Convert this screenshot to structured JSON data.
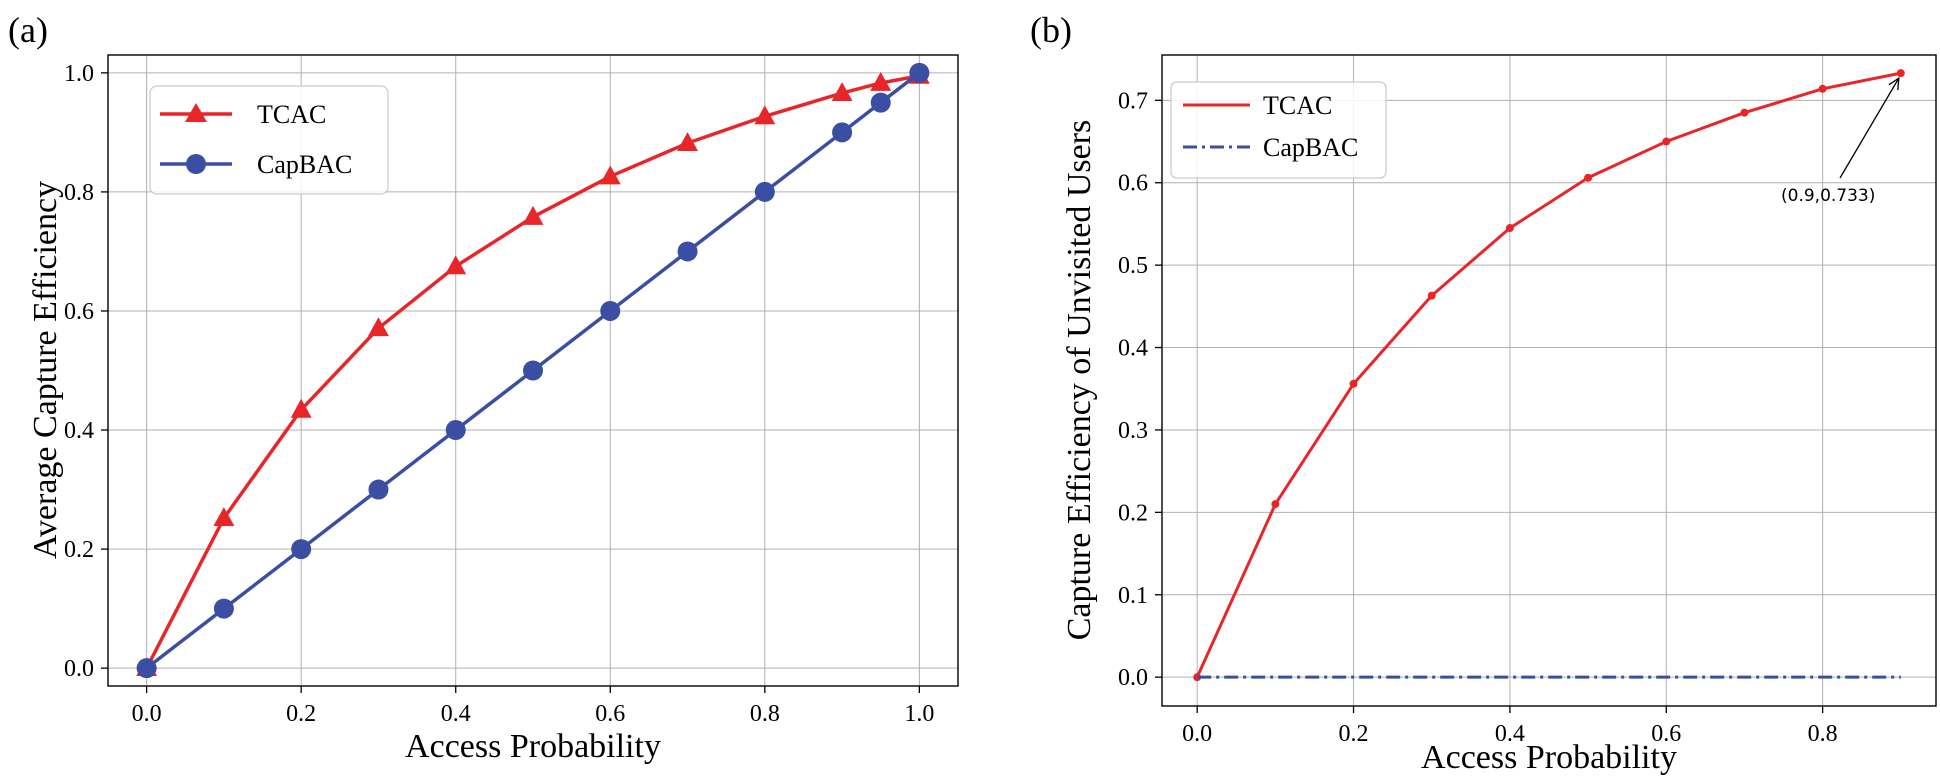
{
  "chart_data": [
    {
      "type": "line",
      "panel_label": "(a)",
      "xlabel": "Access Probability",
      "ylabel": "Average Capture Efficiency",
      "xlim": [
        -0.05,
        1.05
      ],
      "ylim": [
        -0.03,
        1.03
      ],
      "xticks": [
        "0.0",
        "0.2",
        "0.4",
        "0.6",
        "0.8",
        "1.0"
      ],
      "yticks": [
        "0.0",
        "0.2",
        "0.4",
        "0.6",
        "0.8",
        "1.0"
      ],
      "grid": true,
      "legend_position": "top-left",
      "series": [
        {
          "name": "TCAC",
          "color": "#e8262a",
          "marker": "triangle",
          "linestyle": "solid",
          "x": [
            0.0,
            0.1,
            0.2,
            0.3,
            0.4,
            0.5,
            0.6,
            0.7,
            0.8,
            0.9,
            0.95,
            1.0
          ],
          "y": [
            0.0,
            0.252,
            0.434,
            0.571,
            0.675,
            0.758,
            0.826,
            0.882,
            0.927,
            0.966,
            0.983,
            0.995
          ]
        },
        {
          "name": "CapBAC",
          "color": "#3a4fa3",
          "marker": "circle",
          "linestyle": "solid",
          "x": [
            0.0,
            0.1,
            0.2,
            0.3,
            0.4,
            0.5,
            0.6,
            0.7,
            0.8,
            0.9,
            0.95,
            1.0
          ],
          "y": [
            0.0,
            0.1,
            0.2,
            0.3,
            0.4,
            0.5,
            0.6,
            0.7,
            0.8,
            0.9,
            0.95,
            1.0
          ]
        }
      ]
    },
    {
      "type": "line",
      "panel_label": "(b)",
      "xlabel": "Access Probability",
      "ylabel": "Capture Efficiency of Unvisited Users",
      "xlim": [
        -0.045,
        0.945
      ],
      "ylim": [
        -0.035,
        0.755
      ],
      "xticks": [
        "0.0",
        "0.2",
        "0.4",
        "0.6",
        "0.8"
      ],
      "yticks": [
        "0.0",
        "0.1",
        "0.2",
        "0.3",
        "0.4",
        "0.5",
        "0.6",
        "0.7"
      ],
      "grid": true,
      "legend_position": "top-left",
      "annotation": {
        "text": "(0.9,0.733)",
        "x": 0.9,
        "y": 0.733
      },
      "series": [
        {
          "name": "TCAC",
          "color": "#e8262a",
          "marker": "dot",
          "linestyle": "solid",
          "x": [
            0.0,
            0.1,
            0.2,
            0.3,
            0.4,
            0.5,
            0.6,
            0.7,
            0.8,
            0.9
          ],
          "y": [
            0.0,
            0.21,
            0.356,
            0.463,
            0.545,
            0.606,
            0.65,
            0.685,
            0.714,
            0.733
          ]
        },
        {
          "name": "CapBAC",
          "color": "#3a4fa3",
          "marker": "none",
          "linestyle": "dashdot",
          "x": [
            0.0,
            0.9
          ],
          "y": [
            0.0,
            0.0
          ]
        }
      ]
    }
  ]
}
